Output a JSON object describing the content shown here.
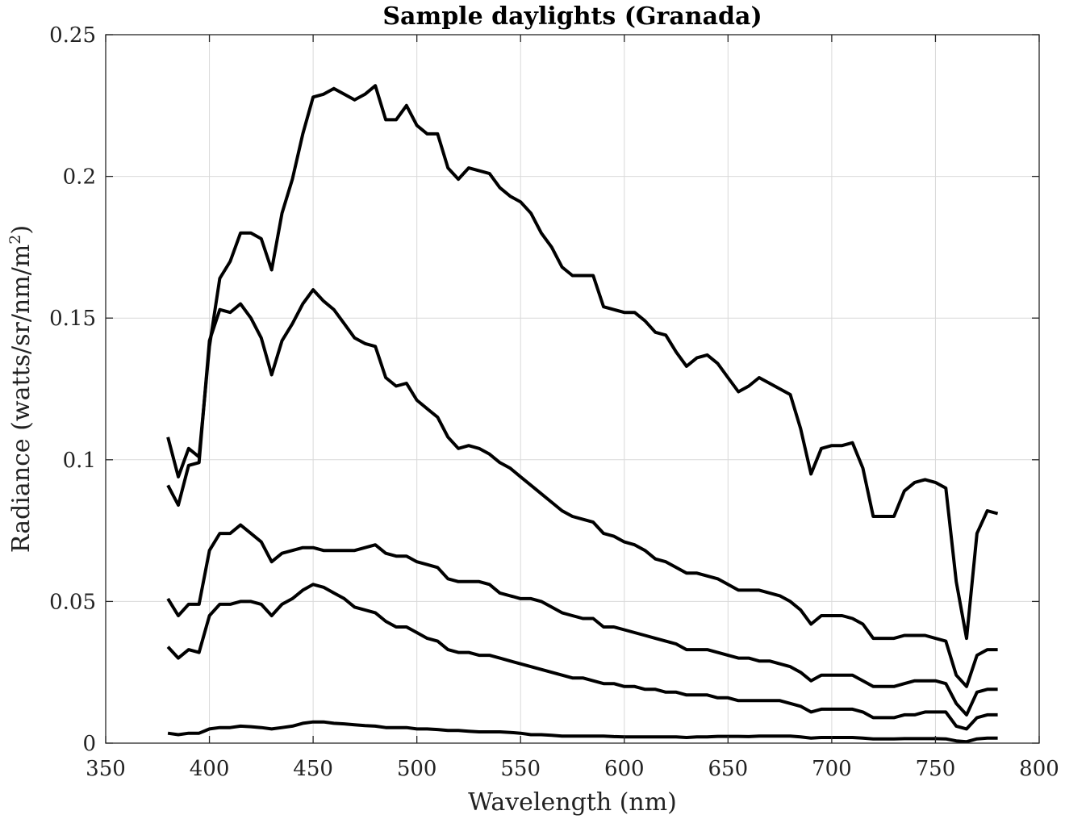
{
  "chart_data": {
    "type": "line",
    "title": "Sample daylights (Granada)",
    "xlabel": "Wavelength (nm)",
    "ylabel_prefix": "Radiance (watts/sr/nm/m",
    "ylabel_sup": "2",
    "ylabel_suffix": ")",
    "xlim": [
      350,
      800
    ],
    "ylim": [
      0,
      0.25
    ],
    "grid": true,
    "xticks": [
      350,
      400,
      450,
      500,
      550,
      600,
      650,
      700,
      750,
      800
    ],
    "xtick_labels": [
      "350",
      "400",
      "450",
      "500",
      "550",
      "600",
      "650",
      "700",
      "750",
      "800"
    ],
    "yticks": [
      0,
      0.05,
      0.1,
      0.15,
      0.2,
      0.25
    ],
    "ytick_labels": [
      "0",
      "0.05",
      "0.1",
      "0.15",
      "0.2",
      "0.25"
    ],
    "line_color": "#000000",
    "x": [
      380,
      385,
      390,
      395,
      400,
      405,
      410,
      415,
      420,
      425,
      430,
      435,
      440,
      445,
      450,
      455,
      460,
      465,
      470,
      475,
      480,
      485,
      490,
      495,
      500,
      505,
      510,
      515,
      520,
      525,
      530,
      535,
      540,
      545,
      550,
      555,
      560,
      565,
      570,
      575,
      580,
      585,
      590,
      595,
      600,
      605,
      610,
      615,
      620,
      625,
      630,
      635,
      640,
      645,
      650,
      655,
      660,
      665,
      670,
      675,
      680,
      685,
      690,
      695,
      700,
      705,
      710,
      715,
      720,
      725,
      730,
      735,
      740,
      745,
      750,
      755,
      760,
      765,
      770,
      775,
      780
    ],
    "series": [
      {
        "values": [
          0.108,
          0.094,
          0.104,
          0.101,
          0.14,
          0.164,
          0.17,
          0.18,
          0.18,
          0.178,
          0.167,
          0.187,
          0.199,
          0.215,
          0.228,
          0.229,
          0.231,
          0.229,
          0.227,
          0.229,
          0.232,
          0.22,
          0.22,
          0.225,
          0.218,
          0.215,
          0.215,
          0.203,
          0.199,
          0.203,
          0.202,
          0.201,
          0.196,
          0.193,
          0.191,
          0.187,
          0.18,
          0.175,
          0.168,
          0.165,
          0.165,
          0.165,
          0.154,
          0.153,
          0.152,
          0.152,
          0.149,
          0.145,
          0.144,
          0.138,
          0.133,
          0.136,
          0.137,
          0.134,
          0.129,
          0.124,
          0.126,
          0.129,
          0.127,
          0.125,
          0.123,
          0.111,
          0.095,
          0.104,
          0.105,
          0.105,
          0.106,
          0.097,
          0.08,
          0.08,
          0.08,
          0.089,
          0.092,
          0.093,
          0.092,
          0.09,
          0.057,
          0.037,
          0.074,
          0.082,
          0.081
        ]
      },
      {
        "values": [
          0.091,
          0.084,
          0.098,
          0.099,
          0.142,
          0.153,
          0.152,
          0.155,
          0.15,
          0.143,
          0.13,
          0.142,
          0.148,
          0.155,
          0.16,
          0.156,
          0.153,
          0.148,
          0.143,
          0.141,
          0.14,
          0.129,
          0.126,
          0.127,
          0.121,
          0.118,
          0.115,
          0.108,
          0.104,
          0.105,
          0.104,
          0.102,
          0.099,
          0.097,
          0.094,
          0.091,
          0.088,
          0.085,
          0.082,
          0.08,
          0.079,
          0.078,
          0.074,
          0.073,
          0.071,
          0.07,
          0.068,
          0.065,
          0.064,
          0.062,
          0.06,
          0.06,
          0.059,
          0.058,
          0.056,
          0.054,
          0.054,
          0.054,
          0.053,
          0.052,
          0.05,
          0.047,
          0.042,
          0.045,
          0.045,
          0.045,
          0.044,
          0.042,
          0.037,
          0.037,
          0.037,
          0.038,
          0.038,
          0.038,
          0.037,
          0.036,
          0.024,
          0.02,
          0.031,
          0.033,
          0.033
        ]
      },
      {
        "values": [
          0.051,
          0.045,
          0.049,
          0.049,
          0.068,
          0.074,
          0.074,
          0.077,
          0.074,
          0.071,
          0.064,
          0.067,
          0.068,
          0.069,
          0.069,
          0.068,
          0.068,
          0.068,
          0.068,
          0.069,
          0.07,
          0.067,
          0.066,
          0.066,
          0.064,
          0.063,
          0.062,
          0.058,
          0.057,
          0.057,
          0.057,
          0.056,
          0.053,
          0.052,
          0.051,
          0.051,
          0.05,
          0.048,
          0.046,
          0.045,
          0.044,
          0.044,
          0.041,
          0.041,
          0.04,
          0.039,
          0.038,
          0.037,
          0.036,
          0.035,
          0.033,
          0.033,
          0.033,
          0.032,
          0.031,
          0.03,
          0.03,
          0.029,
          0.029,
          0.028,
          0.027,
          0.025,
          0.022,
          0.024,
          0.024,
          0.024,
          0.024,
          0.022,
          0.02,
          0.02,
          0.02,
          0.021,
          0.022,
          0.022,
          0.022,
          0.021,
          0.014,
          0.01,
          0.018,
          0.019,
          0.019
        ]
      },
      {
        "values": [
          0.034,
          0.03,
          0.033,
          0.032,
          0.045,
          0.049,
          0.049,
          0.05,
          0.05,
          0.049,
          0.045,
          0.049,
          0.051,
          0.054,
          0.056,
          0.055,
          0.053,
          0.051,
          0.048,
          0.047,
          0.046,
          0.043,
          0.041,
          0.041,
          0.039,
          0.037,
          0.036,
          0.033,
          0.032,
          0.032,
          0.031,
          0.031,
          0.03,
          0.029,
          0.028,
          0.027,
          0.026,
          0.025,
          0.024,
          0.023,
          0.023,
          0.022,
          0.021,
          0.021,
          0.02,
          0.02,
          0.019,
          0.019,
          0.018,
          0.018,
          0.017,
          0.017,
          0.017,
          0.016,
          0.016,
          0.015,
          0.015,
          0.015,
          0.015,
          0.015,
          0.014,
          0.013,
          0.011,
          0.012,
          0.012,
          0.012,
          0.012,
          0.011,
          0.009,
          0.009,
          0.009,
          0.01,
          0.01,
          0.011,
          0.011,
          0.011,
          0.006,
          0.005,
          0.009,
          0.01,
          0.01
        ]
      },
      {
        "values": [
          0.0035,
          0.003,
          0.0035,
          0.0035,
          0.005,
          0.0055,
          0.0055,
          0.006,
          0.0058,
          0.0055,
          0.005,
          0.0055,
          0.006,
          0.007,
          0.0075,
          0.0075,
          0.007,
          0.0068,
          0.0065,
          0.0062,
          0.006,
          0.0055,
          0.0055,
          0.0055,
          0.005,
          0.005,
          0.0048,
          0.0045,
          0.0045,
          0.0042,
          0.004,
          0.004,
          0.004,
          0.0038,
          0.0035,
          0.003,
          0.003,
          0.0028,
          0.0025,
          0.0025,
          0.0025,
          0.0025,
          0.0025,
          0.0023,
          0.0022,
          0.0022,
          0.0022,
          0.0022,
          0.0022,
          0.0022,
          0.002,
          0.0022,
          0.0022,
          0.0024,
          0.0024,
          0.0024,
          0.0023,
          0.0025,
          0.0025,
          0.0025,
          0.0025,
          0.0022,
          0.0018,
          0.002,
          0.002,
          0.002,
          0.002,
          0.0018,
          0.0015,
          0.0015,
          0.0015,
          0.0016,
          0.0016,
          0.0016,
          0.0016,
          0.0015,
          0.0008,
          0.0005,
          0.0015,
          0.0018,
          0.0018
        ]
      }
    ]
  }
}
